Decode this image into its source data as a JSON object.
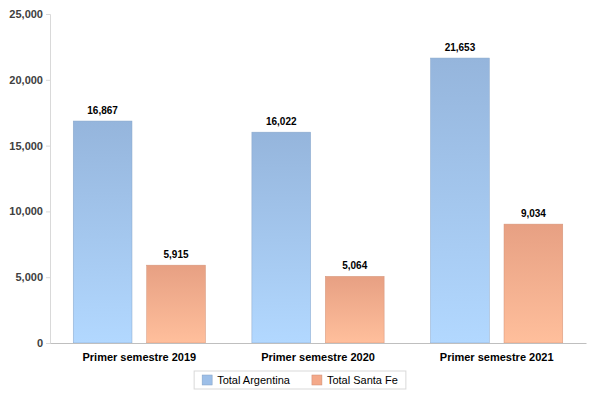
{
  "chart_data": {
    "type": "bar",
    "categories": [
      "Primer semestre 2019",
      "Primer semestre 2020",
      "Primer semestre 2021"
    ],
    "series": [
      {
        "name": "Total Argentina",
        "color": "#9dbfe8",
        "values": [
          16867,
          16022,
          21653
        ],
        "value_labels": [
          "16,867",
          "16,022",
          "21,653"
        ]
      },
      {
        "name": "Total Santa Fe",
        "color": "#f4a98a",
        "values": [
          5915,
          5064,
          9034
        ],
        "value_labels": [
          "5,915",
          "5,064",
          "9,034"
        ]
      }
    ],
    "ylim": [
      0,
      25000
    ],
    "yticks": [
      0,
      {
        "value": 5000,
        "label": "5,000"
      },
      {
        "value": 10000,
        "label": "10,000"
      },
      {
        "value": 15000,
        "label": "15,000"
      },
      {
        "value": 20000,
        "label": "20,000"
      },
      {
        "value": 25000,
        "label": "25,000"
      }
    ],
    "grid": false,
    "data_labels": true,
    "legend": "bottom"
  }
}
